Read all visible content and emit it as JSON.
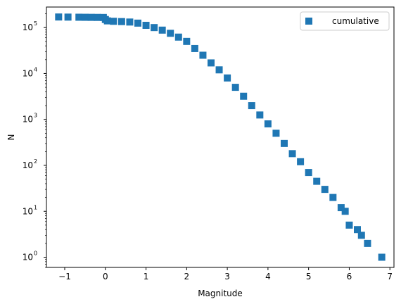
{
  "chart_data": {
    "type": "scatter",
    "xlabel": "Magnitude",
    "ylabel": "N",
    "xlim": [
      -1.45,
      7.1
    ],
    "ylim": [
      0.6,
      280000
    ],
    "yscale": "log",
    "grid": false,
    "legend_position": "top-right",
    "x_ticks": [
      -1,
      0,
      1,
      2,
      3,
      4,
      5,
      6,
      7
    ],
    "x_tick_labels": [
      "−1",
      "0",
      "1",
      "2",
      "3",
      "4",
      "5",
      "6",
      "7"
    ],
    "y_ticks": [
      {
        "value": 1,
        "base": "10",
        "exp": "0"
      },
      {
        "value": 10,
        "base": "10",
        "exp": "1"
      },
      {
        "value": 100,
        "base": "10",
        "exp": "2"
      },
      {
        "value": 1000,
        "base": "10",
        "exp": "3"
      },
      {
        "value": 10000,
        "base": "10",
        "exp": "4"
      },
      {
        "value": 100000,
        "base": "10",
        "exp": "5"
      }
    ],
    "series": [
      {
        "name": "cumulative",
        "color": "#1f77b4",
        "marker": "square",
        "x": [
          -1.15,
          -0.92,
          -0.65,
          -0.5,
          -0.35,
          -0.2,
          -0.05,
          0.0,
          0.05,
          0.2,
          0.4,
          0.6,
          0.8,
          1.0,
          1.2,
          1.4,
          1.6,
          1.8,
          2.0,
          2.2,
          2.4,
          2.6,
          2.8,
          3.0,
          3.2,
          3.4,
          3.6,
          3.8,
          4.0,
          4.2,
          4.4,
          4.6,
          4.8,
          5.0,
          5.2,
          5.4,
          5.6,
          5.8,
          5.9,
          6.0,
          6.2,
          6.3,
          6.45,
          6.8
        ],
        "y": [
          170000,
          169000,
          168000,
          167500,
          167000,
          166500,
          166000,
          150000,
          140000,
          137000,
          135000,
          132000,
          125000,
          112000,
          100000,
          88000,
          75000,
          62000,
          50000,
          35000,
          25000,
          17000,
          12000,
          8000,
          5000,
          3200,
          2000,
          1250,
          800,
          500,
          300,
          180,
          120,
          70,
          45,
          30,
          20,
          12,
          10,
          5,
          4,
          3,
          2,
          1
        ]
      }
    ]
  }
}
